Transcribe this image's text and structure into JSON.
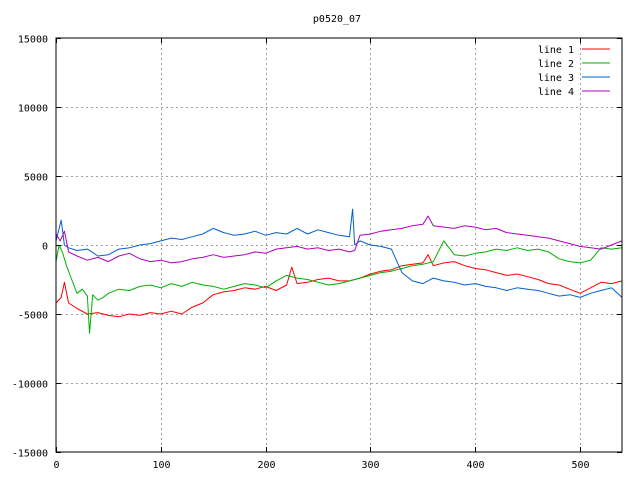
{
  "chart_data": {
    "type": "line",
    "title": "p0520_07",
    "xlabel": "",
    "ylabel": "",
    "xlim": [
      0,
      540
    ],
    "ylim": [
      -15000,
      15000
    ],
    "xticks": [
      0,
      100,
      200,
      300,
      400,
      500
    ],
    "yticks": [
      -15000,
      -10000,
      -5000,
      0,
      5000,
      10000,
      15000
    ],
    "grid": true,
    "legend": "top-right",
    "series": [
      {
        "name": "line 1",
        "color": "#ff0000",
        "points": [
          [
            0,
            -4200
          ],
          [
            5,
            -3800
          ],
          [
            8,
            -2700
          ],
          [
            12,
            -4200
          ],
          [
            20,
            -4600
          ],
          [
            30,
            -5000
          ],
          [
            40,
            -4900
          ],
          [
            50,
            -5100
          ],
          [
            60,
            -5200
          ],
          [
            70,
            -5000
          ],
          [
            80,
            -5100
          ],
          [
            90,
            -4900
          ],
          [
            100,
            -5000
          ],
          [
            110,
            -4800
          ],
          [
            120,
            -5000
          ],
          [
            130,
            -4500
          ],
          [
            140,
            -4200
          ],
          [
            150,
            -3600
          ],
          [
            160,
            -3400
          ],
          [
            170,
            -3300
          ],
          [
            180,
            -3100
          ],
          [
            190,
            -3200
          ],
          [
            200,
            -3000
          ],
          [
            210,
            -3300
          ],
          [
            220,
            -2900
          ],
          [
            225,
            -1600
          ],
          [
            230,
            -2800
          ],
          [
            240,
            -2700
          ],
          [
            250,
            -2500
          ],
          [
            260,
            -2400
          ],
          [
            270,
            -2600
          ],
          [
            280,
            -2600
          ],
          [
            290,
            -2400
          ],
          [
            300,
            -2100
          ],
          [
            310,
            -1900
          ],
          [
            320,
            -1800
          ],
          [
            330,
            -1500
          ],
          [
            340,
            -1400
          ],
          [
            350,
            -1300
          ],
          [
            355,
            -700
          ],
          [
            360,
            -1500
          ],
          [
            370,
            -1300
          ],
          [
            380,
            -1200
          ],
          [
            390,
            -1500
          ],
          [
            400,
            -1700
          ],
          [
            410,
            -1800
          ],
          [
            420,
            -2000
          ],
          [
            430,
            -2200
          ],
          [
            440,
            -2100
          ],
          [
            450,
            -2300
          ],
          [
            460,
            -2500
          ],
          [
            470,
            -2800
          ],
          [
            480,
            -2900
          ],
          [
            490,
            -3200
          ],
          [
            500,
            -3500
          ],
          [
            510,
            -3100
          ],
          [
            520,
            -2700
          ],
          [
            530,
            -2800
          ],
          [
            540,
            -2600
          ]
        ]
      },
      {
        "name": "line 2",
        "color": "#00b000",
        "points": [
          [
            0,
            -1200
          ],
          [
            3,
            0
          ],
          [
            6,
            -500
          ],
          [
            10,
            -1500
          ],
          [
            15,
            -2500
          ],
          [
            20,
            -3500
          ],
          [
            25,
            -3200
          ],
          [
            30,
            -3700
          ],
          [
            32,
            -6400
          ],
          [
            35,
            -3600
          ],
          [
            40,
            -4000
          ],
          [
            45,
            -3800
          ],
          [
            50,
            -3500
          ],
          [
            60,
            -3200
          ],
          [
            70,
            -3300
          ],
          [
            80,
            -3000
          ],
          [
            90,
            -2900
          ],
          [
            100,
            -3100
          ],
          [
            110,
            -2800
          ],
          [
            120,
            -3000
          ],
          [
            130,
            -2700
          ],
          [
            140,
            -2900
          ],
          [
            150,
            -3000
          ],
          [
            160,
            -3200
          ],
          [
            170,
            -3000
          ],
          [
            180,
            -2800
          ],
          [
            190,
            -2900
          ],
          [
            200,
            -3100
          ],
          [
            210,
            -2600
          ],
          [
            220,
            -2200
          ],
          [
            230,
            -2400
          ],
          [
            240,
            -2500
          ],
          [
            250,
            -2700
          ],
          [
            260,
            -2900
          ],
          [
            270,
            -2800
          ],
          [
            280,
            -2600
          ],
          [
            290,
            -2400
          ],
          [
            300,
            -2200
          ],
          [
            310,
            -2000
          ],
          [
            320,
            -1900
          ],
          [
            330,
            -1700
          ],
          [
            340,
            -1500
          ],
          [
            350,
            -1400
          ],
          [
            360,
            -1200
          ],
          [
            370,
            300
          ],
          [
            380,
            -700
          ],
          [
            390,
            -800
          ],
          [
            400,
            -600
          ],
          [
            410,
            -500
          ],
          [
            420,
            -300
          ],
          [
            430,
            -400
          ],
          [
            440,
            -200
          ],
          [
            450,
            -400
          ],
          [
            460,
            -300
          ],
          [
            470,
            -500
          ],
          [
            480,
            -1000
          ],
          [
            490,
            -1200
          ],
          [
            500,
            -1300
          ],
          [
            510,
            -1100
          ],
          [
            520,
            -200
          ],
          [
            530,
            -300
          ],
          [
            540,
            -200
          ]
        ]
      },
      {
        "name": "line 3",
        "color": "#0060d0",
        "points": [
          [
            0,
            300
          ],
          [
            5,
            1800
          ],
          [
            8,
            0
          ],
          [
            12,
            -200
          ],
          [
            20,
            -400
          ],
          [
            30,
            -300
          ],
          [
            40,
            -800
          ],
          [
            50,
            -700
          ],
          [
            60,
            -300
          ],
          [
            70,
            -200
          ],
          [
            80,
            0
          ],
          [
            90,
            100
          ],
          [
            100,
            300
          ],
          [
            110,
            500
          ],
          [
            120,
            400
          ],
          [
            130,
            600
          ],
          [
            140,
            800
          ],
          [
            150,
            1200
          ],
          [
            160,
            900
          ],
          [
            170,
            700
          ],
          [
            180,
            800
          ],
          [
            190,
            1000
          ],
          [
            200,
            700
          ],
          [
            210,
            900
          ],
          [
            220,
            800
          ],
          [
            230,
            1200
          ],
          [
            240,
            800
          ],
          [
            250,
            1100
          ],
          [
            260,
            900
          ],
          [
            270,
            700
          ],
          [
            280,
            600
          ],
          [
            283,
            2600
          ],
          [
            285,
            0
          ],
          [
            290,
            300
          ],
          [
            300,
            0
          ],
          [
            310,
            -100
          ],
          [
            320,
            -300
          ],
          [
            330,
            -2000
          ],
          [
            340,
            -2600
          ],
          [
            350,
            -2800
          ],
          [
            360,
            -2400
          ],
          [
            370,
            -2600
          ],
          [
            380,
            -2700
          ],
          [
            390,
            -2900
          ],
          [
            400,
            -2800
          ],
          [
            410,
            -3000
          ],
          [
            420,
            -3100
          ],
          [
            430,
            -3300
          ],
          [
            440,
            -3100
          ],
          [
            450,
            -3200
          ],
          [
            460,
            -3300
          ],
          [
            470,
            -3500
          ],
          [
            480,
            -3700
          ],
          [
            490,
            -3600
          ],
          [
            500,
            -3800
          ],
          [
            510,
            -3500
          ],
          [
            520,
            -3300
          ],
          [
            530,
            -3100
          ],
          [
            540,
            -3800
          ]
        ]
      },
      {
        "name": "line 4",
        "color": "#b000c0",
        "points": [
          [
            0,
            800
          ],
          [
            4,
            300
          ],
          [
            8,
            1000
          ],
          [
            12,
            -500
          ],
          [
            20,
            -800
          ],
          [
            30,
            -1100
          ],
          [
            40,
            -900
          ],
          [
            50,
            -1200
          ],
          [
            60,
            -800
          ],
          [
            70,
            -600
          ],
          [
            80,
            -1000
          ],
          [
            90,
            -1200
          ],
          [
            100,
            -1100
          ],
          [
            110,
            -1300
          ],
          [
            120,
            -1200
          ],
          [
            130,
            -1000
          ],
          [
            140,
            -900
          ],
          [
            150,
            -700
          ],
          [
            160,
            -900
          ],
          [
            170,
            -800
          ],
          [
            180,
            -700
          ],
          [
            190,
            -500
          ],
          [
            200,
            -600
          ],
          [
            210,
            -300
          ],
          [
            220,
            -200
          ],
          [
            230,
            -100
          ],
          [
            240,
            -300
          ],
          [
            250,
            -200
          ],
          [
            260,
            -400
          ],
          [
            270,
            -300
          ],
          [
            280,
            -500
          ],
          [
            285,
            -400
          ],
          [
            290,
            700
          ],
          [
            300,
            800
          ],
          [
            310,
            1000
          ],
          [
            320,
            1100
          ],
          [
            330,
            1200
          ],
          [
            340,
            1400
          ],
          [
            350,
            1500
          ],
          [
            355,
            2100
          ],
          [
            360,
            1400
          ],
          [
            370,
            1300
          ],
          [
            380,
            1200
          ],
          [
            390,
            1400
          ],
          [
            400,
            1300
          ],
          [
            410,
            1100
          ],
          [
            420,
            1200
          ],
          [
            430,
            900
          ],
          [
            440,
            800
          ],
          [
            450,
            700
          ],
          [
            460,
            600
          ],
          [
            470,
            500
          ],
          [
            480,
            300
          ],
          [
            490,
            100
          ],
          [
            500,
            -100
          ],
          [
            510,
            -200
          ],
          [
            520,
            -300
          ],
          [
            530,
            0
          ],
          [
            540,
            300
          ]
        ]
      }
    ]
  }
}
